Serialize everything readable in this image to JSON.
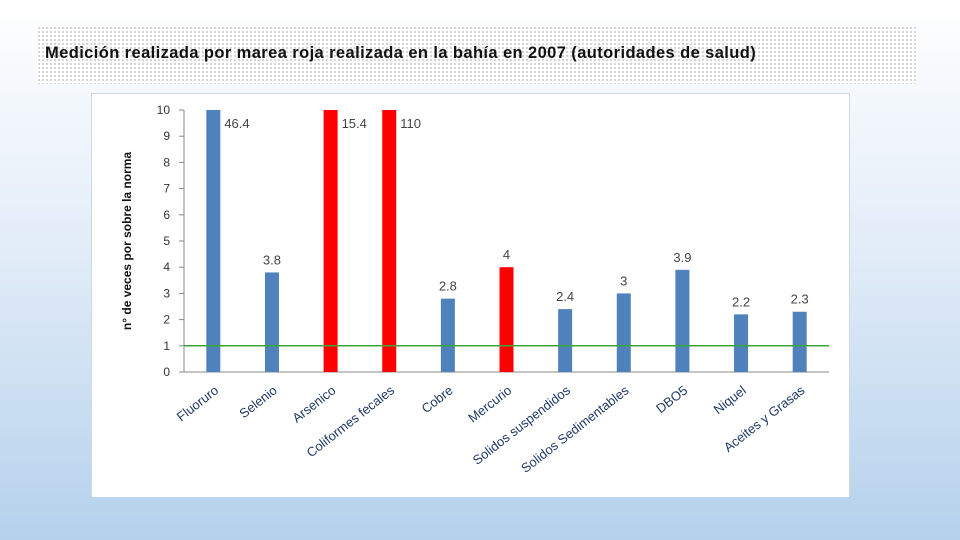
{
  "title": "Medición realizada por marea roja realizada en la bahía en 2007 (autoridades de salud)",
  "colors": {
    "normal": "#4f81bd",
    "highlight": "#ff0000",
    "reference_line": "#3aa63a",
    "axis": "#888888"
  },
  "chart_data": {
    "type": "bar",
    "title": "",
    "xlabel": "",
    "ylabel": "n° de veces por sobre la norma",
    "ylim": [
      0,
      10
    ],
    "yticks": [
      0,
      1,
      2,
      3,
      4,
      5,
      6,
      7,
      8,
      9,
      10
    ],
    "grid": false,
    "categories": [
      "Fluoruro",
      "Selenio",
      "Arsenico",
      "Coliformes fecales",
      "Cobre",
      "Mercurio",
      "Solidos suspendidos",
      "Solidos Sedimentables",
      "DBO5",
      "Niquel",
      "Aceites y Grasas"
    ],
    "values": [
      46.4,
      3.8,
      15.4,
      110,
      2.8,
      4,
      2.4,
      3,
      3.9,
      2.2,
      2.3
    ],
    "data_labels": [
      "46.4",
      "3.8",
      "15.4",
      "110",
      "2.8",
      "4",
      "2.4",
      "3",
      "3.9",
      "2.2",
      "2.3"
    ],
    "highlighted": [
      false,
      false,
      true,
      true,
      false,
      true,
      false,
      false,
      false,
      false,
      false
    ],
    "reference_line": 1
  }
}
